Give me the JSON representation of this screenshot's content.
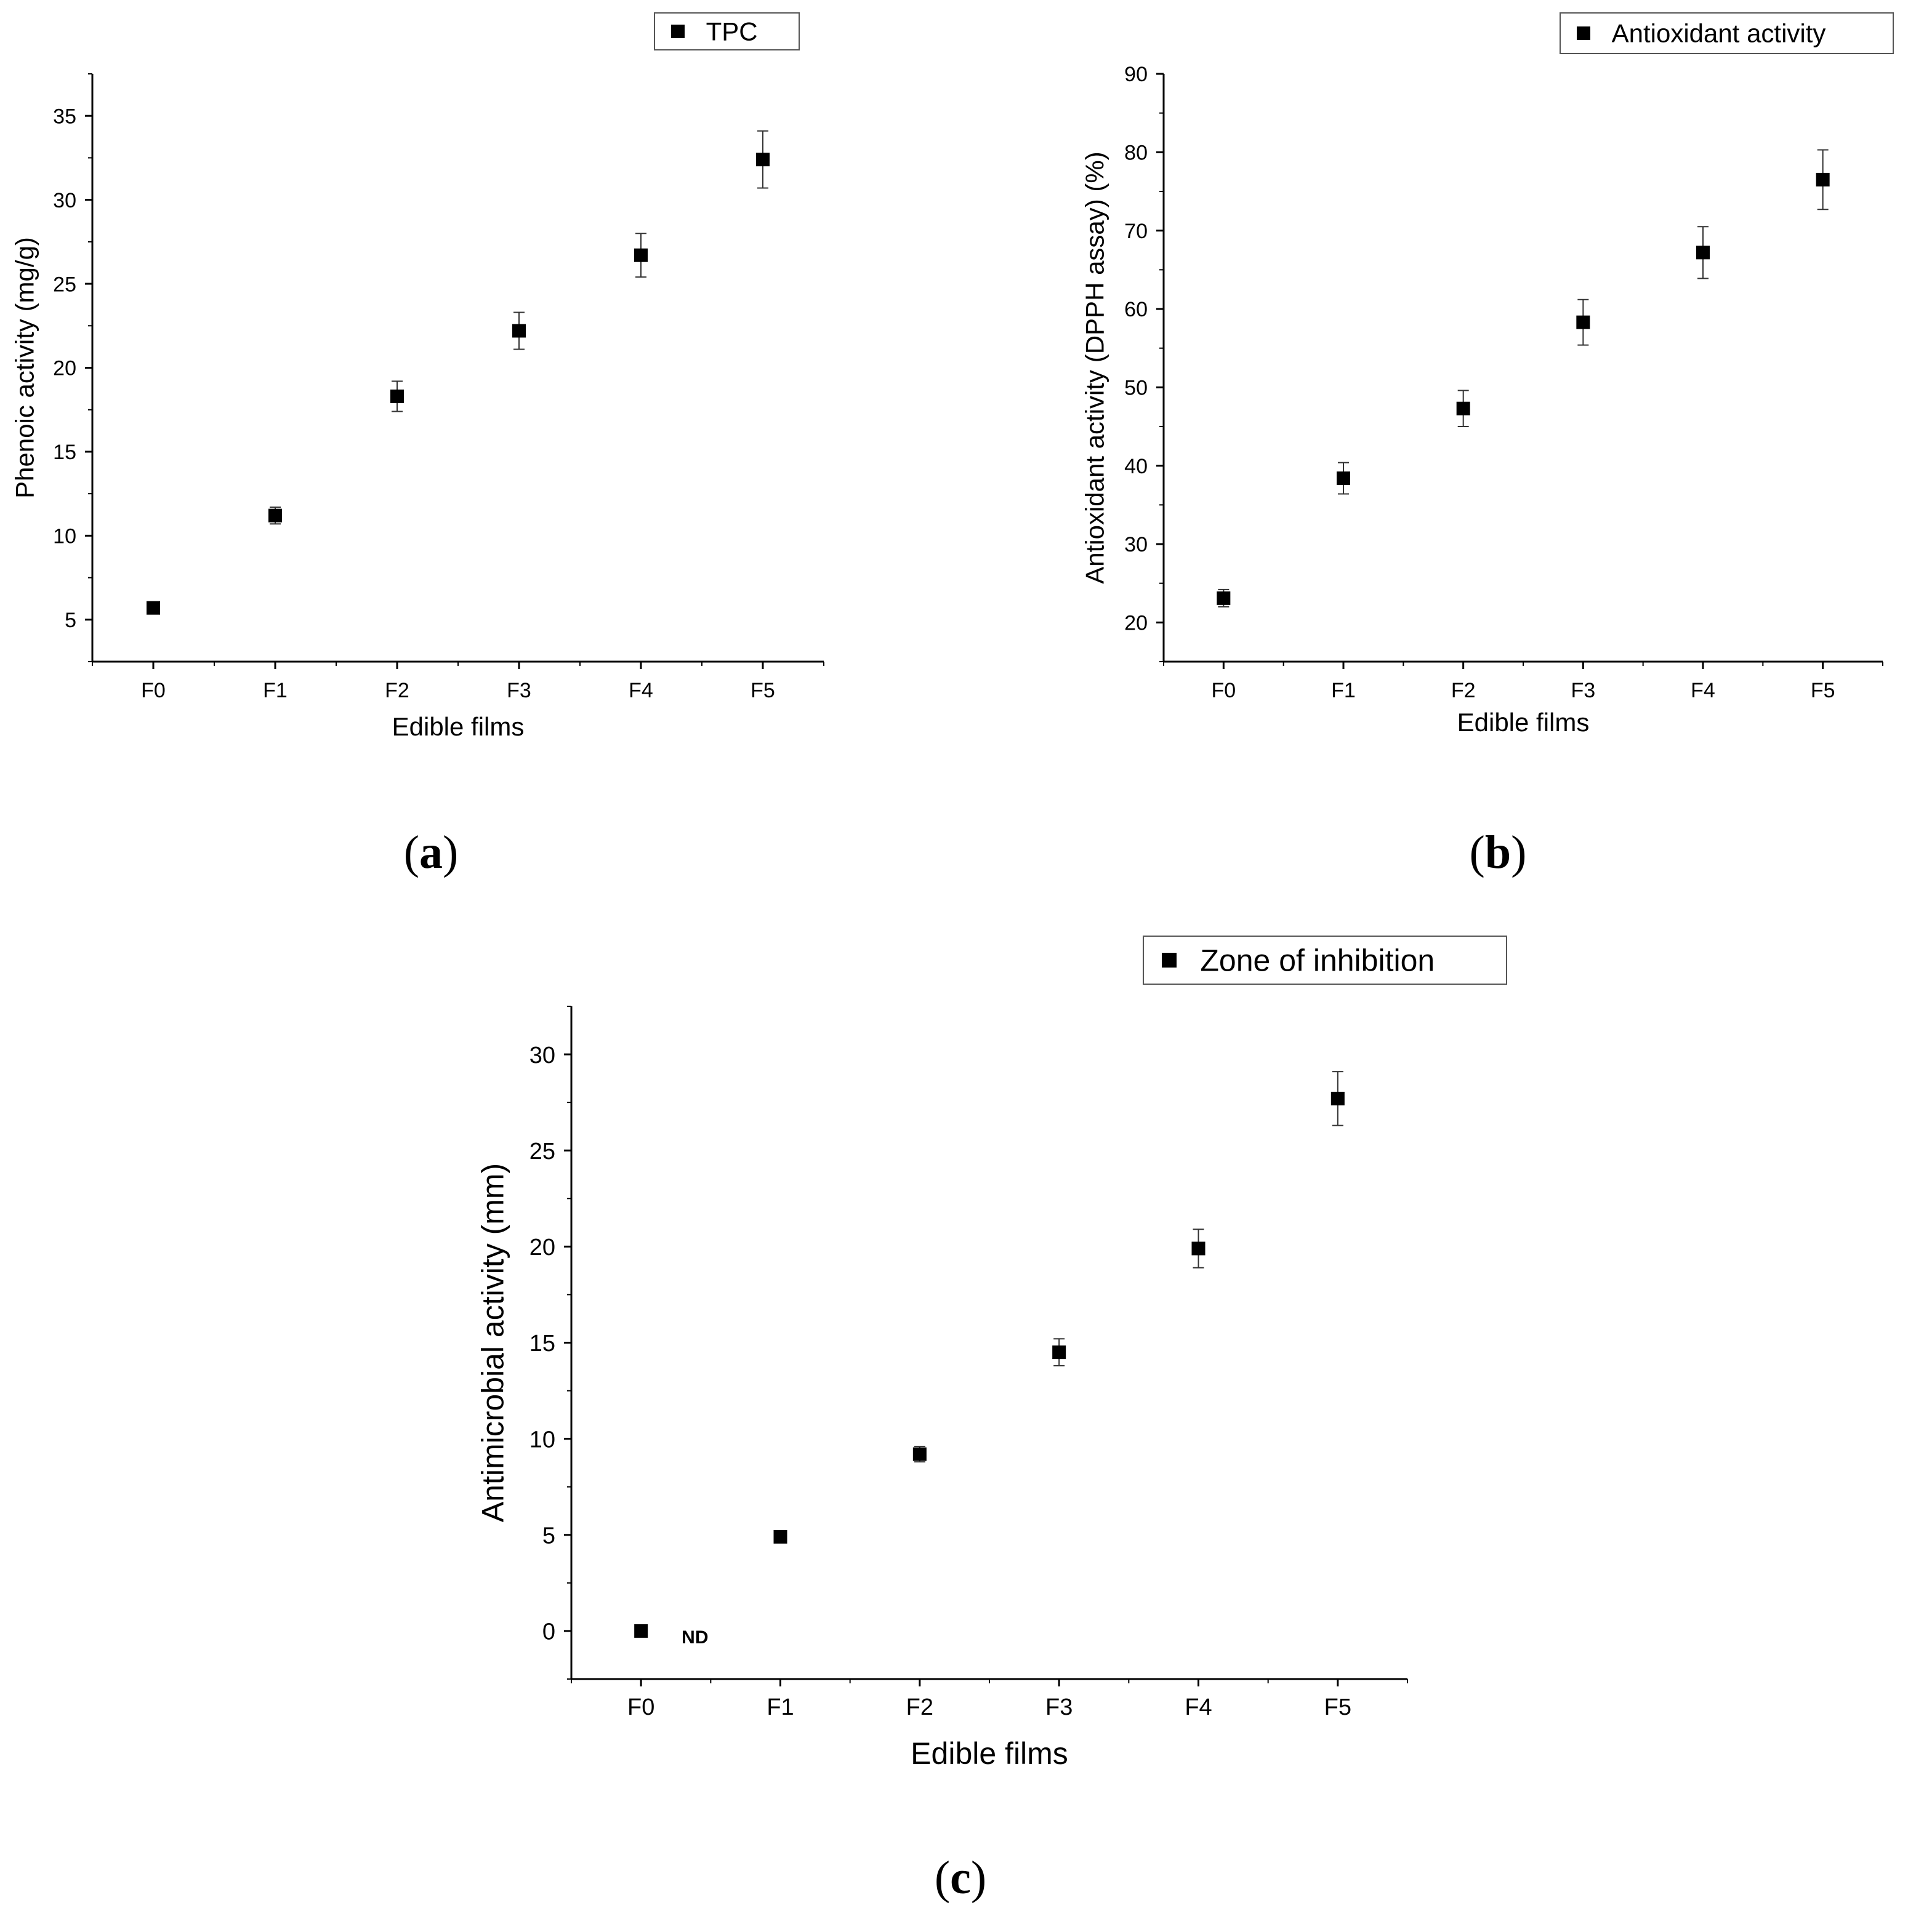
{
  "chart_data": [
    {
      "type": "scatter",
      "panel_label": "(a)",
      "panel_letter": "a",
      "title": "",
      "legend": [
        "TPC"
      ],
      "legend_placement": "top-right",
      "xlabel": "Edible films",
      "ylabel": "Phenoic activity (mg/g)",
      "categories": [
        "F0",
        "F1",
        "F2",
        "F3",
        "F4",
        "F5"
      ],
      "series": [
        {
          "name": "TPC",
          "values": [
            5.7,
            11.2,
            18.3,
            22.2,
            26.7,
            32.4
          ],
          "errors": [
            0.3,
            0.5,
            0.9,
            1.1,
            1.3,
            1.7
          ]
        }
      ],
      "ylim": [
        2.5,
        37.5
      ],
      "yticks": [
        5,
        10,
        15,
        20,
        25,
        30,
        35
      ],
      "marker_color": "#000000"
    },
    {
      "type": "scatter",
      "panel_label": "(b)",
      "panel_letter": "b",
      "title": "",
      "legend": [
        "Antioxidant activity"
      ],
      "legend_placement": "top-right",
      "xlabel": "Edible films",
      "ylabel": "Antioxidant activity (DPPH assay) (%)",
      "categories": [
        "F0",
        "F1",
        "F2",
        "F3",
        "F4",
        "F5"
      ],
      "series": [
        {
          "name": "Antioxidant activity",
          "values": [
            23.1,
            38.4,
            47.3,
            58.3,
            67.2,
            76.5
          ],
          "errors": [
            1.1,
            2.0,
            2.3,
            2.9,
            3.3,
            3.8
          ]
        }
      ],
      "ylim": [
        15,
        90
      ],
      "yticks": [
        20,
        30,
        40,
        50,
        60,
        70,
        80,
        90
      ],
      "marker_color": "#000000"
    },
    {
      "type": "scatter",
      "panel_label": "(c)",
      "panel_letter": "c",
      "title": "",
      "legend": [
        "Zone of inhibition"
      ],
      "legend_placement": "top-right",
      "xlabel": "Edible films",
      "ylabel": "Antimicrobial activity (mm)",
      "categories": [
        "F0",
        "F1",
        "F2",
        "F3",
        "F4",
        "F5"
      ],
      "series": [
        {
          "name": "Zone of inhibition",
          "values": [
            0,
            4.9,
            9.2,
            14.5,
            19.9,
            27.7
          ],
          "errors": [
            0,
            0.2,
            0.4,
            0.7,
            1.0,
            1.4
          ]
        }
      ],
      "ylim": [
        -2.5,
        32.5
      ],
      "yticks": [
        0,
        5,
        10,
        15,
        20,
        25,
        30
      ],
      "annotations": [
        {
          "category": "F0",
          "text": "ND"
        }
      ],
      "marker_color": "#000000"
    }
  ]
}
